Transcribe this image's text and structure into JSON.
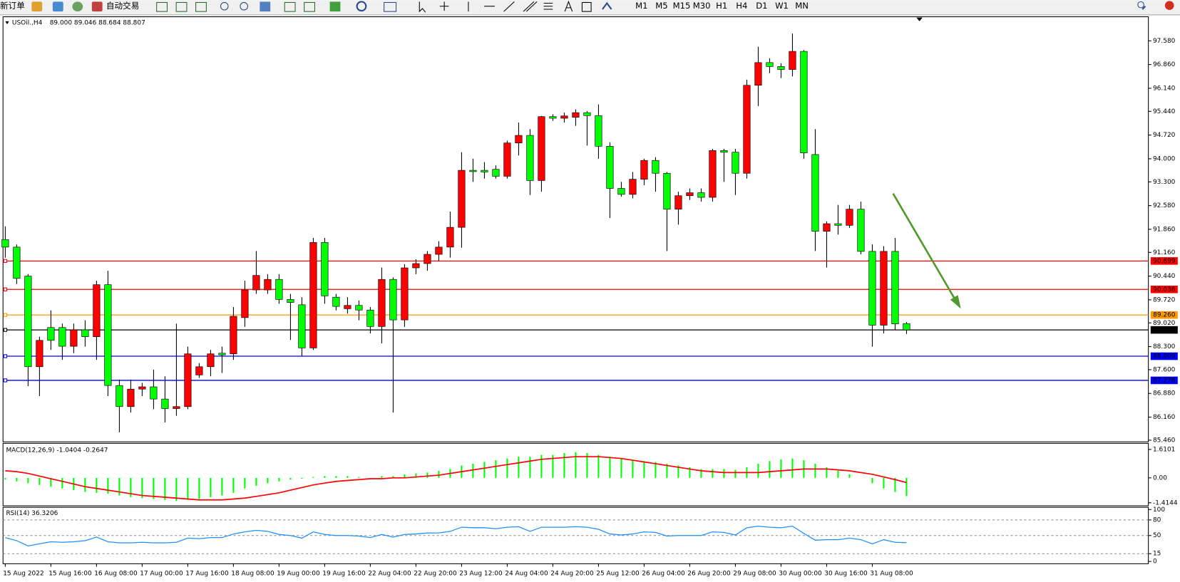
{
  "toolbar": {
    "new_order": "新订单",
    "auto_trading": "自动交易",
    "timeframes": [
      "M1",
      "M5",
      "M15",
      "M30",
      "H1",
      "H4",
      "D1",
      "W1",
      "MN"
    ]
  },
  "chart_data": [
    {
      "type": "candlestick",
      "title": "USOil.,H4",
      "subtitle": "89.000 89.046 88.684 88.807",
      "categories": [
        "15 Aug 2022",
        null,
        null,
        null,
        "15 Aug 16:00",
        null,
        null,
        null,
        "16 Aug 08:00",
        null,
        null,
        null,
        "17 Aug 00:00",
        null,
        null,
        null,
        "17 Aug 16:00",
        null,
        null,
        null,
        "18 Aug 08:00",
        null,
        null,
        null,
        "19 Aug 00:00",
        null,
        null,
        null,
        "19 Aug 16:00",
        null,
        null,
        null,
        "22 Aug 04:00",
        null,
        null,
        null,
        "22 Aug 20:00",
        null,
        null,
        null,
        "23 Aug 12:00",
        null,
        null,
        null,
        "24 Aug 04:00",
        null,
        null,
        null,
        "24 Aug 20:00",
        null,
        null,
        null,
        "25 Aug 12:00",
        null,
        null,
        null,
        "26 Aug 04:00",
        null,
        null,
        null,
        "26 Aug 20:00",
        null,
        null,
        null,
        "29 Aug 08:00",
        null,
        null,
        null,
        "30 Aug 00:00",
        null,
        null,
        null,
        "30 Aug 16:00",
        null,
        null,
        null,
        "31 Aug 08:00",
        null,
        null,
        null
      ],
      "open": [
        91.55,
        91.32,
        90.44,
        87.69,
        88.88,
        88.88,
        88.31,
        88.81,
        88.6,
        90.18,
        87.12,
        86.48,
        87.01,
        87.08,
        86.71,
        86.42,
        86.48,
        87.44,
        87.69,
        88.1,
        88.08,
        89.18,
        90.02,
        90.02,
        90.34,
        89.73,
        89.57,
        88.26,
        91.46,
        89.8,
        89.45,
        89.55,
        89.41,
        88.91,
        90.34,
        89.11,
        90.69,
        90.82,
        91.1,
        91.32,
        91.92,
        93.65,
        93.65,
        93.68,
        93.47,
        94.48,
        94.71,
        93.34,
        95.28,
        95.23,
        95.26,
        95.4,
        95.31,
        94.38,
        93.1,
        92.92,
        93.38,
        93.95,
        93.56,
        92.47,
        92.88,
        92.97,
        92.83,
        94.25,
        94.2,
        93.56,
        96.23,
        96.92,
        96.8,
        96.71,
        97.26,
        94.13,
        91.8,
        92.03,
        91.98,
        92.47,
        91.19,
        88.95,
        91.19,
        89.0
      ],
      "high": [
        91.95,
        91.4,
        90.5,
        88.6,
        89.4,
        89.0,
        89.0,
        89.1,
        90.3,
        90.6,
        87.3,
        87.3,
        87.2,
        87.6,
        87.4,
        89.0,
        88.3,
        87.8,
        88.2,
        88.3,
        89.5,
        90.3,
        91.2,
        90.5,
        90.5,
        89.9,
        89.8,
        91.6,
        91.6,
        89.9,
        89.8,
        89.7,
        89.5,
        90.7,
        90.4,
        90.8,
        90.95,
        91.2,
        91.5,
        92.4,
        94.2,
        94.0,
        93.9,
        93.8,
        94.55,
        95.1,
        94.9,
        95.3,
        95.35,
        95.4,
        95.5,
        95.45,
        95.65,
        94.5,
        93.3,
        93.6,
        94.0,
        94.05,
        93.6,
        93.0,
        93.1,
        93.1,
        94.3,
        94.3,
        94.3,
        96.4,
        97.4,
        97.05,
        96.9,
        97.8,
        97.3,
        94.9,
        92.1,
        92.6,
        92.6,
        92.7,
        91.4,
        91.35,
        91.6,
        89.046
      ],
      "low": [
        91.0,
        90.2,
        87.1,
        86.8,
        88.2,
        87.9,
        88.1,
        88.3,
        87.9,
        86.8,
        85.7,
        86.3,
        86.8,
        86.4,
        86.0,
        86.2,
        86.4,
        87.35,
        87.4,
        87.5,
        87.9,
        88.9,
        89.9,
        89.9,
        89.6,
        88.5,
        88.0,
        88.2,
        89.6,
        89.4,
        89.3,
        89.1,
        88.7,
        88.4,
        86.3,
        88.9,
        90.5,
        90.6,
        90.9,
        91.0,
        91.3,
        93.3,
        93.4,
        93.4,
        93.4,
        94.1,
        92.9,
        93.0,
        95.15,
        95.1,
        95.0,
        94.4,
        94.0,
        92.2,
        92.85,
        92.8,
        93.2,
        93.0,
        91.2,
        92.0,
        92.75,
        92.7,
        92.7,
        93.3,
        92.9,
        93.4,
        95.6,
        96.6,
        96.45,
        96.5,
        94.0,
        91.2,
        90.7,
        91.7,
        91.9,
        91.1,
        88.3,
        88.7,
        88.8,
        88.684
      ],
      "close": [
        91.32,
        90.37,
        87.69,
        88.49,
        88.49,
        88.31,
        88.81,
        88.6,
        90.18,
        87.12,
        86.48,
        87.01,
        87.08,
        86.71,
        86.42,
        86.48,
        88.08,
        87.69,
        88.08,
        88.05,
        89.22,
        90.02,
        90.46,
        90.34,
        89.73,
        89.64,
        88.26,
        91.46,
        89.84,
        89.52,
        89.55,
        89.41,
        88.91,
        90.34,
        89.11,
        90.69,
        90.82,
        91.1,
        91.32,
        91.92,
        93.65,
        93.61,
        93.6,
        93.47,
        94.48,
        94.71,
        93.34,
        95.28,
        95.23,
        95.3,
        95.4,
        95.31,
        94.38,
        93.1,
        92.92,
        93.38,
        93.95,
        93.56,
        92.47,
        92.88,
        92.97,
        92.83,
        94.25,
        94.2,
        93.56,
        96.23,
        96.92,
        96.8,
        96.71,
        97.26,
        94.18,
        91.8,
        92.03,
        91.98,
        92.47,
        91.19,
        88.95,
        91.19,
        88.99,
        88.807
      ],
      "up_color": "#ff0000",
      "down_color": "#00ff00",
      "ylim": [
        85.41,
        98.31
      ],
      "yticks": [
        {
          "value": 97.58,
          "label": "97.580"
        },
        {
          "value": 96.86,
          "label": "96.860"
        },
        {
          "value": 96.14,
          "label": "96.140"
        },
        {
          "value": 95.44,
          "label": "95.440"
        },
        {
          "value": 94.72,
          "label": "94.720"
        },
        {
          "value": 94.0,
          "label": "94.000"
        },
        {
          "value": 93.3,
          "label": "93.300"
        },
        {
          "value": 92.58,
          "label": "92.580"
        },
        {
          "value": 91.86,
          "label": "91.860"
        },
        {
          "value": 91.16,
          "label": "91.160"
        },
        {
          "value": 90.44,
          "label": "90.440"
        },
        {
          "value": 89.72,
          "label": "89.720"
        },
        {
          "value": 89.02,
          "label": "89.020"
        },
        {
          "value": 88.3,
          "label": "88.300"
        },
        {
          "value": 87.6,
          "label": "87.600"
        },
        {
          "value": 86.88,
          "label": "86.880"
        },
        {
          "value": 86.16,
          "label": "86.160"
        },
        {
          "value": 85.46,
          "label": "85.460"
        }
      ],
      "levels": [
        {
          "value": 90.899,
          "label": "90.899",
          "color": "#ff0000"
        },
        {
          "value": 90.036,
          "label": "90.036",
          "color": "#ff0000"
        },
        {
          "value": 89.26,
          "label": "89.260",
          "color": "#ff9900"
        },
        {
          "value": 88.807,
          "label": "88.807",
          "color": "#000000"
        },
        {
          "value": 88.009,
          "label": "88.009",
          "color": "#0000ff"
        },
        {
          "value": 87.276,
          "label": "87.276",
          "color": "#0000ff"
        }
      ]
    },
    {
      "type": "macd",
      "title": "MACD(12,26,9) -1.0404 -0.2647",
      "series": [
        {
          "name": "histogram",
          "color": "#00ff00",
          "values": [
            -0.1,
            -0.2,
            -0.3,
            -0.4,
            -0.5,
            -0.6,
            -0.7,
            -0.8,
            -0.85,
            -0.9,
            -1.0,
            -1.1,
            -1.15,
            -1.2,
            -1.25,
            -1.3,
            -1.25,
            -1.2,
            -1.1,
            -1.0,
            -0.85,
            -0.6,
            -0.45,
            -0.3,
            -0.2,
            -0.1,
            -0.05,
            0.05,
            0.1,
            0.1,
            0.1,
            0.05,
            0.0,
            0.1,
            0.1,
            0.2,
            0.25,
            0.3,
            0.4,
            0.5,
            0.7,
            0.8,
            0.9,
            1.0,
            1.1,
            1.2,
            1.2,
            1.3,
            1.3,
            1.4,
            1.45,
            1.4,
            1.3,
            1.2,
            1.1,
            1.0,
            0.95,
            0.9,
            0.8,
            0.7,
            0.6,
            0.5,
            0.5,
            0.5,
            0.45,
            0.6,
            0.8,
            0.95,
            1.05,
            1.1,
            1.0,
            0.8,
            0.6,
            0.4,
            0.2,
            0.0,
            -0.3,
            -0.6,
            -0.8,
            -1.0404
          ]
        },
        {
          "name": "signal",
          "color": "#ff0000",
          "values": [
            0.4,
            0.35,
            0.25,
            0.1,
            -0.05,
            -0.2,
            -0.35,
            -0.5,
            -0.6,
            -0.7,
            -0.8,
            -0.9,
            -1.0,
            -1.05,
            -1.1,
            -1.15,
            -1.2,
            -1.25,
            -1.25,
            -1.25,
            -1.2,
            -1.15,
            -1.05,
            -0.95,
            -0.85,
            -0.7,
            -0.55,
            -0.4,
            -0.3,
            -0.2,
            -0.15,
            -0.1,
            -0.05,
            -0.05,
            0.0,
            0.0,
            0.05,
            0.1,
            0.15,
            0.25,
            0.35,
            0.45,
            0.55,
            0.65,
            0.75,
            0.85,
            0.95,
            1.05,
            1.1,
            1.15,
            1.2,
            1.2,
            1.2,
            1.15,
            1.1,
            1.0,
            0.9,
            0.8,
            0.7,
            0.6,
            0.5,
            0.4,
            0.35,
            0.3,
            0.3,
            0.3,
            0.3,
            0.35,
            0.4,
            0.45,
            0.5,
            0.5,
            0.5,
            0.45,
            0.4,
            0.3,
            0.2,
            0.05,
            -0.1,
            -0.2647
          ]
        }
      ],
      "ylim": [
        -1.5,
        1.87
      ],
      "yticks": [
        1.6101,
        {
          "value": 0,
          "label": "0.00"
        },
        -1.4144
      ]
    },
    {
      "type": "line",
      "title": "RSI(14) 36.3206",
      "series": [
        {
          "name": "RSI",
          "color": "#1e90ff",
          "values": [
            46,
            40,
            30,
            34,
            38,
            37,
            38,
            40,
            47,
            38,
            36,
            36,
            37,
            36,
            36,
            37,
            45,
            44,
            46,
            46,
            53,
            57,
            60,
            58,
            52,
            50,
            45,
            57,
            52,
            50,
            50,
            49,
            46,
            52,
            47,
            52,
            53,
            55,
            55,
            58,
            66,
            65,
            65,
            63,
            66,
            67,
            58,
            66,
            66,
            66,
            67,
            66,
            62,
            53,
            51,
            53,
            57,
            56,
            49,
            50,
            50,
            50,
            57,
            56,
            51,
            65,
            68,
            66,
            65,
            68,
            54,
            41,
            42,
            42,
            45,
            42,
            34,
            42,
            37,
            36.3206
          ]
        }
      ],
      "ylim": [
        0,
        100
      ],
      "yticks": [
        100,
        80,
        50,
        15,
        0
      ],
      "levels": [
        80,
        50,
        15
      ]
    }
  ]
}
